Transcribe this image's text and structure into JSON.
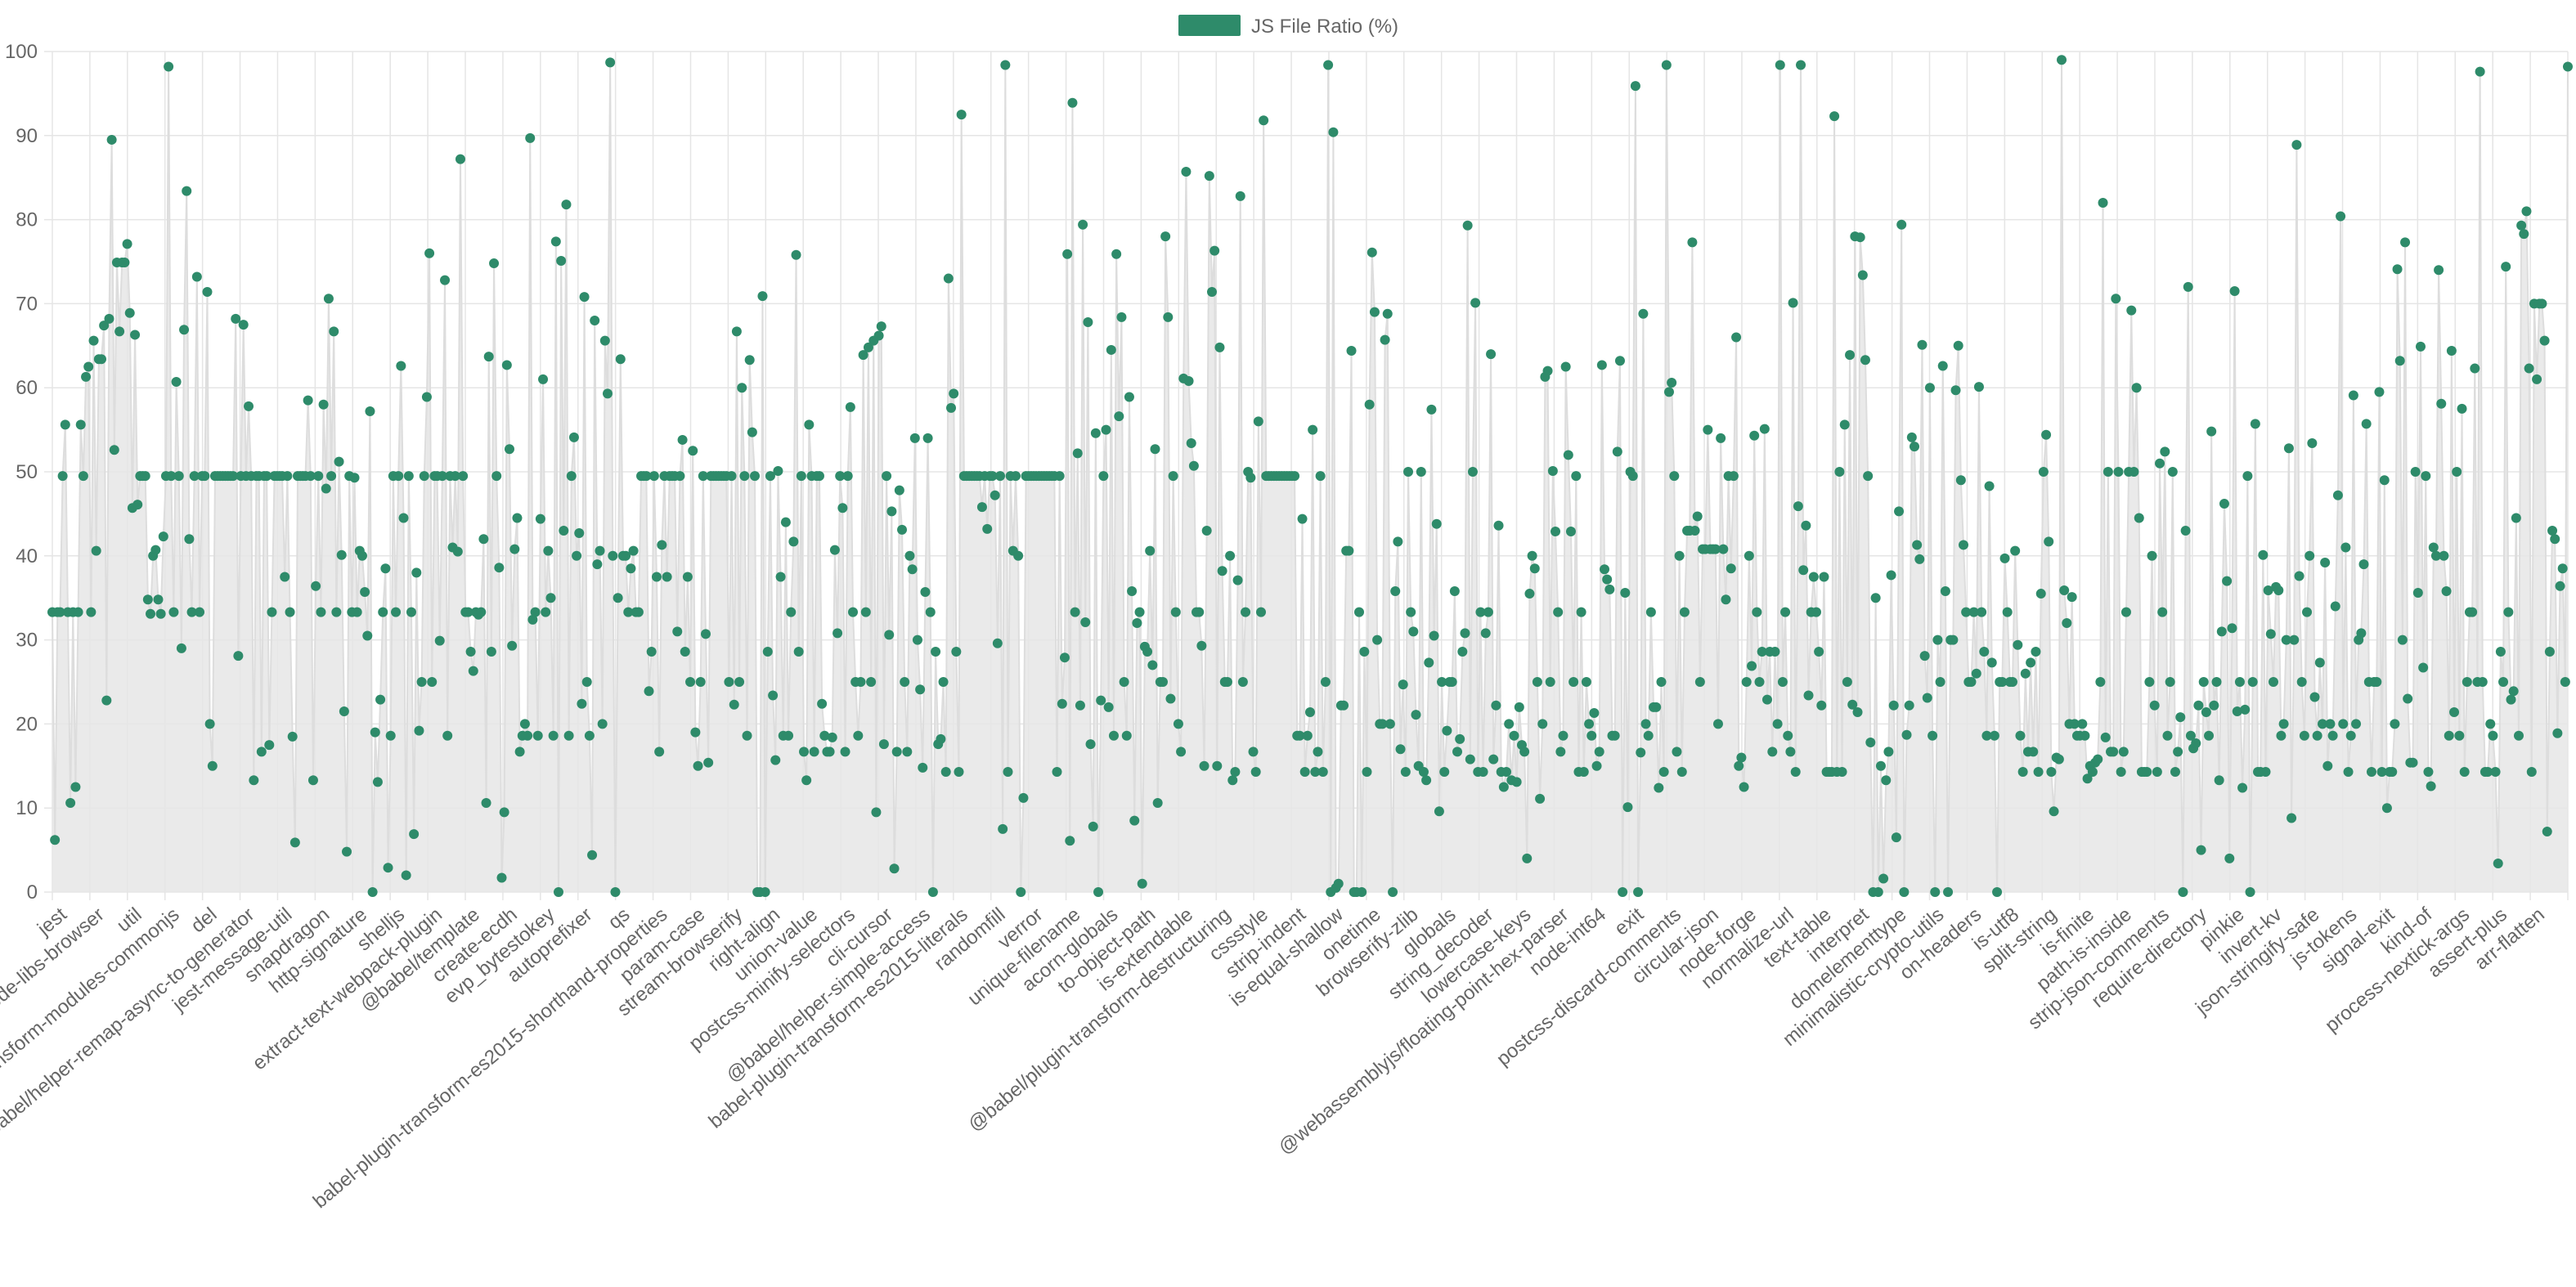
{
  "chart_data": {
    "type": "line",
    "title": "",
    "xlabel": "",
    "ylabel": "",
    "ylim": [
      0,
      100
    ],
    "y_ticks": [
      0,
      10,
      20,
      30,
      40,
      50,
      60,
      70,
      80,
      90,
      100
    ],
    "grid": true,
    "legend_position": "top-center",
    "colors": {
      "series": "#2e8b6a",
      "line": "#dddddd",
      "fill": "#e6e6e6",
      "grid": "#e5e5e5",
      "text": "#666666"
    },
    "series": [
      {
        "name": "JS File Ratio (%)",
        "values": [
          33.3,
          6.2,
          33.3,
          33.3,
          49.5,
          55.6,
          33.3,
          10.6,
          33.3,
          12.5,
          33.3,
          55.6,
          49.5,
          61.3,
          62.5,
          33.3,
          65.6,
          40.6,
          63.4,
          63.4,
          67.4,
          22.8,
          68.2,
          89.5,
          52.6,
          74.9,
          66.7,
          74.9,
          74.9,
          77.1,
          68.9,
          45.7,
          66.3,
          46.1,
          49.5,
          49.5,
          49.5,
          34.8,
          33.1,
          40.0,
          40.7,
          34.8,
          33.1,
          42.3,
          49.5,
          98.2,
          49.5,
          33.3,
          60.7,
          49.5,
          29.0,
          66.9,
          83.4,
          42.0,
          33.3,
          49.5,
          73.2,
          33.3,
          49.5,
          49.5,
          71.4,
          20.0,
          15.0,
          49.5,
          49.5,
          49.5,
          49.5,
          49.5,
          49.5,
          49.5,
          49.5,
          68.2,
          28.1,
          49.5,
          67.5,
          49.5,
          57.8,
          49.5,
          13.3,
          49.5,
          49.5,
          16.7,
          49.5,
          49.5,
          17.5,
          33.3,
          49.5,
          49.5,
          49.5,
          49.5,
          37.5,
          49.5,
          33.3,
          18.5,
          5.9,
          49.5,
          49.5,
          49.5,
          49.5,
          58.5,
          49.5,
          13.3,
          36.4,
          49.5,
          33.3,
          58.0,
          48.0,
          70.6,
          49.5,
          66.7,
          33.3,
          51.2,
          40.1,
          21.5,
          4.8,
          49.5,
          33.3,
          49.3,
          33.3,
          40.6,
          40.0,
          35.7,
          30.5,
          57.2,
          0.0,
          19.0,
          13.1,
          22.9,
          33.3,
          38.5,
          2.9,
          18.6,
          49.5,
          33.3,
          49.5,
          62.6,
          44.5,
          2.0,
          49.5,
          33.3,
          6.9,
          38.0,
          19.2,
          25.0,
          49.5,
          58.9,
          76.0,
          25.0,
          49.5,
          49.5,
          29.9,
          49.5,
          72.8,
          18.6,
          49.5,
          41.0,
          49.5,
          40.5,
          87.2,
          49.5,
          33.3,
          33.3,
          28.6,
          26.3,
          33.3,
          33.0,
          33.3,
          42.0,
          10.6,
          63.7,
          28.6,
          74.8,
          49.5,
          38.6,
          1.7,
          9.5,
          62.7,
          52.7,
          29.3,
          40.8,
          44.5,
          16.7,
          18.6,
          20.0,
          18.6,
          89.7,
          32.4,
          33.3,
          18.6,
          44.4,
          61.0,
          33.3,
          40.6,
          35.0,
          18.6,
          77.4,
          0.0,
          75.1,
          43.0,
          81.8,
          18.6,
          49.5,
          54.1,
          40.0,
          42.7,
          22.4,
          70.8,
          25.0,
          18.6,
          4.4,
          68.0,
          39.0,
          40.6,
          20.0,
          65.6,
          59.3,
          98.7,
          40.0,
          0.0,
          35.0,
          63.4,
          40.0,
          40.0,
          33.3,
          38.5,
          40.6,
          33.3,
          33.3,
          49.5,
          49.5,
          49.5,
          23.9,
          28.6,
          49.5,
          37.5,
          16.7,
          41.3,
          49.5,
          37.5,
          49.5,
          49.5,
          49.5,
          31.0,
          49.5,
          53.8,
          28.6,
          37.5,
          25.0,
          52.5,
          19.0,
          15.0,
          25.0,
          49.5,
          30.7,
          15.4,
          49.5,
          49.5,
          49.5,
          49.5,
          49.5,
          49.5,
          49.5,
          25.0,
          49.5,
          22.3,
          66.7,
          25.0,
          60.0,
          49.5,
          18.6,
          63.3,
          54.7,
          49.5,
          0.0,
          0.0,
          70.9,
          0.0,
          28.6,
          49.5,
          23.4,
          15.7,
          50.1,
          37.5,
          18.6,
          44.0,
          18.6,
          33.3,
          41.7,
          75.8,
          28.6,
          49.5,
          16.7,
          13.3,
          55.6,
          49.5,
          16.7,
          49.5,
          49.5,
          22.4,
          18.6,
          16.7,
          16.7,
          18.4,
          40.7,
          30.8,
          49.5,
          45.7,
          16.7,
          49.5,
          57.7,
          33.3,
          25.0,
          18.6,
          25.0,
          63.9,
          33.3,
          64.8,
          25.0,
          65.6,
          9.5,
          66.2,
          67.3,
          17.6,
          49.5,
          30.6,
          45.3,
          2.8,
          16.7,
          47.8,
          43.1,
          25.0,
          16.7,
          40.0,
          38.4,
          54.0,
          30.0,
          24.1,
          14.8,
          35.7,
          54.0,
          33.3,
          0.0,
          28.6,
          17.6,
          18.2,
          25.0,
          14.3,
          73.0,
          57.6,
          59.3,
          28.6,
          14.3,
          92.5,
          49.5,
          49.5,
          49.5,
          49.5,
          49.5,
          49.5,
          49.5,
          45.8,
          49.5,
          43.2,
          49.5,
          49.5,
          47.2,
          29.6,
          49.5,
          7.5,
          98.4,
          14.3,
          49.5,
          40.6,
          49.5,
          40.0,
          0.0,
          11.2,
          49.5,
          49.5,
          49.5,
          49.5,
          49.5,
          49.5,
          49.5,
          49.5,
          49.5,
          49.5,
          49.5,
          49.5,
          14.3,
          49.5,
          22.4,
          27.9,
          75.9,
          6.1,
          93.9,
          33.3,
          52.2,
          22.2,
          79.4,
          32.1,
          67.8,
          17.6,
          7.8,
          54.6,
          0.0,
          22.8,
          49.5,
          55.0,
          22.0,
          64.5,
          18.6,
          75.9,
          56.6,
          68.4,
          25.0,
          18.6,
          58.9,
          35.8,
          8.5,
          32.0,
          33.3,
          1.0,
          29.2,
          28.6,
          40.6,
          27.0,
          52.7,
          10.6,
          25.0,
          25.0,
          78.0,
          68.4,
          23.0,
          49.5,
          33.3,
          20.0,
          16.7,
          61.1,
          85.7,
          60.8,
          53.4,
          50.7,
          33.3,
          33.3,
          29.3,
          15.0,
          43.0,
          85.2,
          71.4,
          76.3,
          15.0,
          64.8,
          38.2,
          25.0,
          25.0,
          40.0,
          13.3,
          14.3,
          37.1,
          82.8,
          25.0,
          33.3,
          50.0,
          49.3,
          16.7,
          14.3,
          56.0,
          33.3,
          91.8,
          49.5,
          49.5,
          49.5,
          49.5,
          49.5,
          49.5,
          49.5,
          49.5,
          49.5,
          49.5,
          49.5,
          49.5,
          18.6,
          18.6,
          44.4,
          14.3,
          18.6,
          21.4,
          55.0,
          14.3,
          16.7,
          49.5,
          14.3,
          25.0,
          98.4,
          0.0,
          90.4,
          0.5,
          1.0,
          22.2,
          22.2,
          40.6,
          40.6,
          64.4,
          0.0,
          0.0,
          33.3,
          0.0,
          28.6,
          14.3,
          58.0,
          76.1,
          69.0,
          30.0,
          20.0,
          20.0,
          65.7,
          68.8,
          20.0,
          0.0,
          35.8,
          41.7,
          17.0,
          24.7,
          14.3,
          50.0,
          33.3,
          31.0,
          21.1,
          15.0,
          50.0,
          14.3,
          13.3,
          27.3,
          57.4,
          30.5,
          43.8,
          9.6,
          25.0,
          14.3,
          19.2,
          25.0,
          25.0,
          35.8,
          16.7,
          18.2,
          28.6,
          30.8,
          79.3,
          15.8,
          50.0,
          70.1,
          14.3,
          33.3,
          14.3,
          30.8,
          33.3,
          64.0,
          15.8,
          22.2,
          43.6,
          14.3,
          12.5,
          14.3,
          20.0,
          13.3,
          18.6,
          13.1,
          22.0,
          17.5,
          16.7,
          4.0,
          35.5,
          40.0,
          38.5,
          25.0,
          11.1,
          20.0,
          61.3,
          62.0,
          25.0,
          50.1,
          42.9,
          33.3,
          16.7,
          18.6,
          62.5,
          52.0,
          42.9,
          25.0,
          49.5,
          14.3,
          33.3,
          14.3,
          25.0,
          20.0,
          18.6,
          21.3,
          15.0,
          16.7,
          62.7,
          38.4,
          37.2,
          36.0,
          18.6,
          18.6,
          52.4,
          63.2,
          0.0,
          35.6,
          10.1,
          50.0,
          49.5,
          95.9,
          0.0,
          16.6,
          68.8,
          20.0,
          18.6,
          33.3,
          22.0,
          22.0,
          12.4,
          25.0,
          14.3,
          98.4,
          59.5,
          60.6,
          49.5,
          16.7,
          40.0,
          14.3,
          33.3,
          43.0,
          43.0,
          77.3,
          43.0,
          44.7,
          25.0,
          40.8,
          40.8,
          55.0,
          40.8,
          40.8,
          40.8,
          20.0,
          54.0,
          40.8,
          34.8,
          49.5,
          38.5,
          49.5,
          66.0,
          15.0,
          16.0,
          12.5,
          25.0,
          40.0,
          26.9,
          54.3,
          33.3,
          25.0,
          28.6,
          55.1,
          22.9,
          28.6,
          16.7,
          28.6,
          20.0,
          98.4,
          25.0,
          33.3,
          18.6,
          16.7,
          70.1,
          14.3,
          45.9,
          98.4,
          38.3,
          43.6,
          23.4,
          33.3,
          37.5,
          33.3,
          28.6,
          22.2,
          37.5,
          14.3,
          14.3,
          14.3,
          92.3,
          14.3,
          50.0,
          14.3,
          55.6,
          25.0,
          63.9,
          22.3,
          78.0,
          21.4,
          77.9,
          73.4,
          63.3,
          49.5,
          17.8,
          0.0,
          35.0,
          0.0,
          15.0,
          1.6,
          13.3,
          16.7,
          37.7,
          22.2,
          6.5,
          45.3,
          79.4,
          0.0,
          18.7,
          22.2,
          54.1,
          53.0,
          41.3,
          39.6,
          65.1,
          28.1,
          23.1,
          60.0,
          18.6,
          0.0,
          30.0,
          25.0,
          62.6,
          35.8,
          0.0,
          30.0,
          30.0,
          59.7,
          65.0,
          49.0,
          41.3,
          33.3,
          25.0,
          25.0,
          33.3,
          26.0,
          60.1,
          33.3,
          28.6,
          18.6,
          48.3,
          27.3,
          18.6,
          0.0,
          25.0,
          25.0,
          39.7,
          33.3,
          25.0,
          25.0,
          40.6,
          29.4,
          18.6,
          14.3,
          26.0,
          16.7,
          27.3,
          16.7,
          28.6,
          14.3,
          35.5,
          50.0,
          54.4,
          41.7,
          14.3,
          9.6,
          16.0,
          15.8,
          99.0,
          35.9,
          32.0,
          20.0,
          35.1,
          20.0,
          18.6,
          18.6,
          20.0,
          18.6,
          13.5,
          15.0,
          14.3,
          15.4,
          15.8,
          25.0,
          82.0,
          18.4,
          50.0,
          16.7,
          16.7,
          70.6,
          50.0,
          14.3,
          16.7,
          33.3,
          50.0,
          69.2,
          50.0,
          60.0,
          44.5,
          14.3,
          14.3,
          14.3,
          25.0,
          40.0,
          22.2,
          14.3,
          51.0,
          33.3,
          52.4,
          18.6,
          25.0,
          50.0,
          14.3,
          16.7,
          20.8,
          0.0,
          43.0,
          72.0,
          18.6,
          17.1,
          17.7,
          22.2,
          5.0,
          25.0,
          21.4,
          18.6,
          54.8,
          22.2,
          25.0,
          13.3,
          31.0,
          46.2,
          37.0,
          4.0,
          31.4,
          71.5,
          21.5,
          25.0,
          12.4,
          21.7,
          49.5,
          0.0,
          25.0,
          55.7,
          14.3,
          14.3,
          40.1,
          14.3,
          35.9,
          30.7,
          25.0,
          36.3,
          35.9,
          18.6,
          20.0,
          30.0,
          52.8,
          8.8,
          30.0,
          88.9,
          37.6,
          25.0,
          18.6,
          33.3,
          40.0,
          53.4,
          23.2,
          18.6,
          27.3,
          20.0,
          39.2,
          15.0,
          20.0,
          18.6,
          34.0,
          47.2,
          80.4,
          20.0,
          41.0,
          14.3,
          18.6,
          59.1,
          20.0,
          30.0,
          30.8,
          39.0,
          55.7,
          25.0,
          14.3,
          25.0,
          25.0,
          59.5,
          14.3,
          49.0,
          10.0,
          14.3,
          14.3,
          20.0,
          74.1,
          63.2,
          30.0,
          77.3,
          23.0,
          15.4,
          15.4,
          50.0,
          35.6,
          64.9,
          26.7,
          49.5,
          14.3,
          12.6,
          41.0,
          40.0,
          74.0,
          58.1,
          40.0,
          35.8,
          18.6,
          64.4,
          21.4,
          50.0,
          18.6,
          57.5,
          14.3,
          25.0,
          33.3,
          33.3,
          62.3,
          25.0,
          97.6,
          25.0,
          14.3,
          14.3,
          20.0,
          18.6,
          14.3,
          3.4,
          28.6,
          25.0,
          74.4,
          33.3,
          22.9,
          23.9,
          44.5,
          18.6,
          79.3,
          78.3,
          81.0,
          62.3,
          14.3,
          70.0,
          61.0,
          70.0,
          70.0,
          65.6,
          7.2,
          28.6,
          43.0,
          42.0,
          18.9,
          36.4,
          38.5,
          25.0,
          98.2
        ]
      }
    ],
    "x_tick_labels": [
      "jest",
      "node-libs-browser",
      "util",
      "@babel/plugin-transform-modules-commonjs",
      "del",
      "@babel/helper-remap-async-to-generator",
      "jest-message-util",
      "snapdragon",
      "http-signature",
      "shelljs",
      "extract-text-webpack-plugin",
      "@babel/template",
      "create-ecdh",
      "evp_bytestokey",
      "autoprefixer",
      "qs",
      "babel-plugin-transform-es2015-shorthand-properties",
      "param-case",
      "stream-browserify",
      "right-align",
      "union-value",
      "postcss-minify-selectors",
      "cli-cursor",
      "@babel/helper-simple-access",
      "babel-plugin-transform-es2015-literals",
      "randomfill",
      "verror",
      "unique-filename",
      "acorn-globals",
      "to-object-path",
      "is-extendable",
      "@babel/plugin-transform-destructuring",
      "cssstyle",
      "strip-indent",
      "is-equal-shallow",
      "onetime",
      "browserify-zlib",
      "globals",
      "string_decoder",
      "lowercase-keys",
      "@webassemblyjs/floating-point-hex-parser",
      "node-int64",
      "exit",
      "postcss-discard-comments",
      "circular-json",
      "node-forge",
      "normalize-url",
      "text-table",
      "interpret",
      "domelementtype",
      "minimalistic-crypto-utils",
      "on-headers",
      "is-utf8",
      "split-string",
      "is-finite",
      "path-is-inside",
      "strip-json-comments",
      "require-directory",
      "pinkie",
      "invert-kv",
      "json-stringify-safe",
      "js-tokens",
      "signal-exit",
      "kind-of",
      "process-nextick-args",
      "assert-plus",
      "arr-flatten"
    ]
  }
}
